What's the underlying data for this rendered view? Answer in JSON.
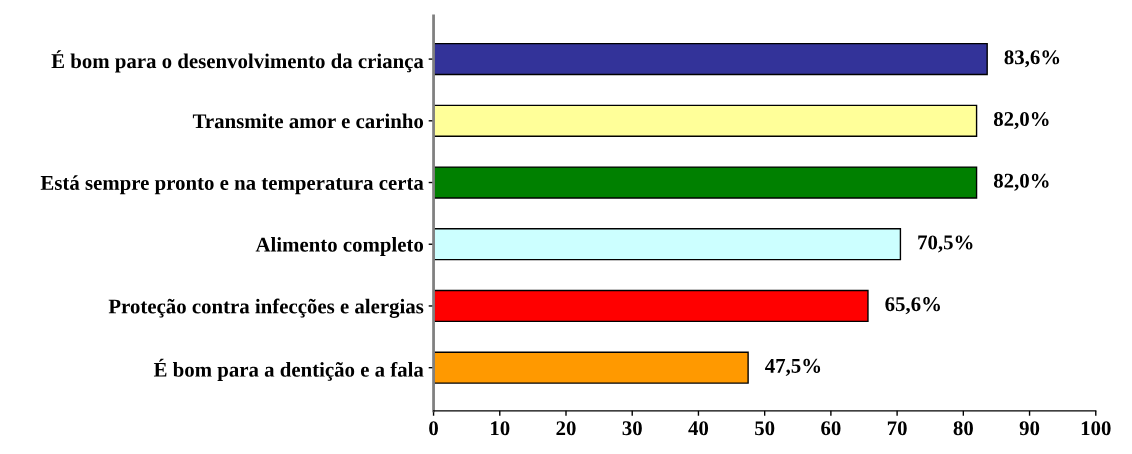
{
  "chart_data": {
    "type": "bar",
    "orientation": "horizontal",
    "categories": [
      "É bom para o desenvolvimento da criança",
      "Transmite amor e carinho",
      "Está sempre pronto e na temperatura certa",
      "Alimento completo",
      "Proteção contra infecções e alergias",
      "É bom para a dentição e a fala"
    ],
    "values": [
      83.6,
      82.0,
      82.0,
      70.5,
      65.6,
      47.5
    ],
    "colors": [
      "#333399",
      "#ffff99",
      "#008000",
      "#ccffff",
      "#ff0000",
      "#ff9900"
    ],
    "value_labels": [
      "83,6%",
      "82,0%",
      "82,0%",
      "70,5%",
      "65,6%",
      "47,5%"
    ],
    "xlim": [
      0,
      100
    ],
    "xticks": [
      0,
      10,
      20,
      30,
      40,
      50,
      60,
      70,
      80,
      90,
      100
    ],
    "grid": false,
    "legend": false
  }
}
